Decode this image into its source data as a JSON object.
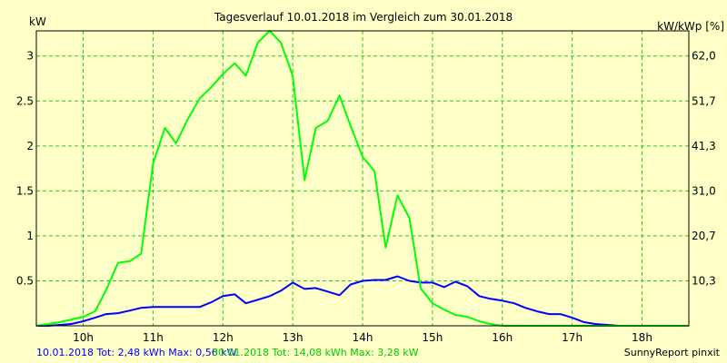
{
  "chart_data": {
    "type": "line",
    "title": "Tagesverlauf 10.01.2018 im Vergleich zum 30.01.2018",
    "ylabel_left": "kW",
    "ylabel_right": "kW/kWp [%]",
    "x_ticks": [
      "10h",
      "11h",
      "12h",
      "13h",
      "14h",
      "15h",
      "16h",
      "17h",
      "18h"
    ],
    "x_tick_values": [
      10,
      11,
      12,
      13,
      14,
      15,
      16,
      17,
      18
    ],
    "xlim": [
      9.33,
      18.67
    ],
    "y_ticks": [
      "0.5",
      "1",
      "1.5",
      "2",
      "2.5",
      "3"
    ],
    "y_tick_values": [
      0.5,
      1,
      1.5,
      2,
      2.5,
      3
    ],
    "ylim": [
      0,
      3.28
    ],
    "y2_ticks": [
      "10,3",
      "20,7",
      "31,0",
      "41,3",
      "51,7",
      "62,0"
    ],
    "grid": true,
    "series": [
      {
        "name": "10.01.2018",
        "color": "#0000ff",
        "x": [
          9.33,
          9.5,
          9.67,
          9.83,
          10.0,
          10.17,
          10.33,
          10.5,
          10.67,
          10.83,
          11.0,
          11.17,
          11.33,
          11.5,
          11.67,
          11.83,
          12.0,
          12.17,
          12.33,
          12.5,
          12.67,
          12.83,
          13.0,
          13.17,
          13.33,
          13.5,
          13.67,
          13.83,
          14.0,
          14.17,
          14.33,
          14.5,
          14.67,
          14.83,
          15.0,
          15.17,
          15.33,
          15.5,
          15.67,
          15.83,
          16.0,
          16.17,
          16.33,
          16.5,
          16.67,
          16.83,
          17.0,
          17.17,
          17.33,
          17.5,
          17.67,
          17.83,
          18.0,
          18.17,
          18.33,
          18.5,
          18.67
        ],
        "values": [
          0.0,
          0.0,
          0.01,
          0.02,
          0.05,
          0.09,
          0.13,
          0.14,
          0.17,
          0.2,
          0.21,
          0.21,
          0.21,
          0.21,
          0.21,
          0.26,
          0.33,
          0.35,
          0.25,
          0.29,
          0.33,
          0.39,
          0.48,
          0.41,
          0.42,
          0.38,
          0.34,
          0.46,
          0.5,
          0.51,
          0.51,
          0.55,
          0.5,
          0.48,
          0.48,
          0.43,
          0.49,
          0.44,
          0.33,
          0.3,
          0.28,
          0.25,
          0.2,
          0.16,
          0.13,
          0.13,
          0.09,
          0.04,
          0.02,
          0.01,
          0.0,
          0.0,
          0.0,
          0.0,
          0.0,
          0.0,
          0.0
        ]
      },
      {
        "name": "30.01.2018",
        "color": "#00ff00",
        "x": [
          9.33,
          9.5,
          9.67,
          9.83,
          10.0,
          10.17,
          10.33,
          10.5,
          10.67,
          10.83,
          11.0,
          11.17,
          11.33,
          11.5,
          11.67,
          11.83,
          12.0,
          12.17,
          12.33,
          12.5,
          12.67,
          12.83,
          13.0,
          13.17,
          13.33,
          13.5,
          13.67,
          13.83,
          14.0,
          14.17,
          14.33,
          14.5,
          14.67,
          14.83,
          15.0,
          15.17,
          15.33,
          15.5,
          15.67,
          15.83,
          16.0,
          16.17,
          16.33,
          16.5,
          16.67,
          16.83,
          17.0,
          17.17,
          17.33,
          17.5,
          17.67,
          17.83,
          18.0,
          18.17,
          18.33,
          18.5,
          18.67
        ],
        "values": [
          0.0,
          0.02,
          0.04,
          0.07,
          0.1,
          0.16,
          0.4,
          0.7,
          0.72,
          0.8,
          1.8,
          2.2,
          2.03,
          2.3,
          2.53,
          2.65,
          2.8,
          2.92,
          2.78,
          3.15,
          3.28,
          3.15,
          2.78,
          1.62,
          2.2,
          2.28,
          2.56,
          2.22,
          1.88,
          1.72,
          0.87,
          1.45,
          1.2,
          0.42,
          0.25,
          0.18,
          0.12,
          0.1,
          0.05,
          0.02,
          0.0,
          0.0,
          0.0,
          0.0,
          0.0,
          0.0,
          0.0,
          0.0,
          0.0,
          0.0,
          0.0,
          0.0,
          0.0,
          0.0,
          0.0,
          0.0,
          0.0
        ]
      }
    ],
    "footer": {
      "series1": "10.01.2018 Tot: 2,48 kWh Max: 0,56 kW",
      "series2": "30.01.2018 Tot: 14,08 kWh Max: 3,28 kW",
      "brand": "SunnyReport pinxit"
    }
  },
  "colors": {
    "background": "#ffffc8",
    "grid": "#22cc22",
    "series1": "#0000ff",
    "series2": "#00ff00"
  }
}
